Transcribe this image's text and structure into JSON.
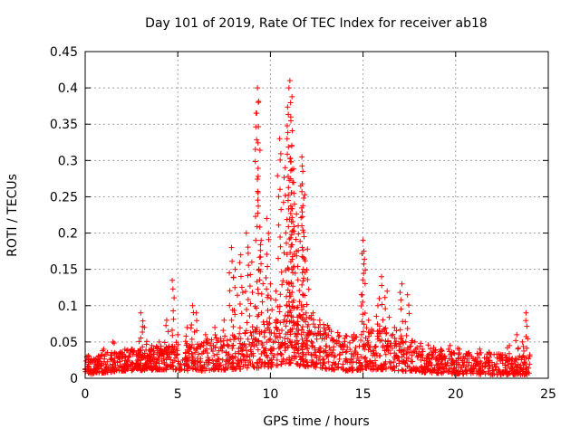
{
  "chart_data": {
    "type": "scatter",
    "title": "Day 101 of 2019, Rate Of TEC Index for receiver ab18",
    "xlabel": "GPS time / hours",
    "ylabel": "ROTI / TECUs",
    "xlim": [
      0,
      25
    ],
    "ylim": [
      0,
      0.45
    ],
    "xticks": [
      0,
      5,
      10,
      15,
      20,
      25
    ],
    "yticks": [
      0,
      0.05,
      0.1,
      0.15,
      0.2,
      0.25,
      0.3,
      0.35,
      0.4,
      0.45
    ],
    "xtick_labels": [
      "0",
      "5",
      "10",
      "15",
      "20",
      "25"
    ],
    "ytick_labels": [
      "0",
      "0.05",
      "0.1",
      "0.15",
      "0.2",
      "0.25",
      "0.3",
      "0.35",
      "0.4",
      "0.45"
    ],
    "grid": true,
    "marker": "+",
    "color": "#ff0000",
    "series": [
      {
        "name": "ROTI",
        "points": [
          [
            0.2,
            0.03
          ],
          [
            0.5,
            0.025
          ],
          [
            1.0,
            0.04
          ],
          [
            1.5,
            0.05
          ],
          [
            2.0,
            0.035
          ],
          [
            2.5,
            0.04
          ],
          [
            3.0,
            0.09
          ],
          [
            3.2,
            0.07
          ],
          [
            3.6,
            0.045
          ],
          [
            4.0,
            0.05
          ],
          [
            4.4,
            0.08
          ],
          [
            4.7,
            0.135
          ],
          [
            5.0,
            0.06
          ],
          [
            5.5,
            0.07
          ],
          [
            5.8,
            0.1
          ],
          [
            6.0,
            0.09
          ],
          [
            6.5,
            0.06
          ],
          [
            7.0,
            0.07
          ],
          [
            7.5,
            0.08
          ],
          [
            7.9,
            0.18
          ],
          [
            8.1,
            0.15
          ],
          [
            8.4,
            0.17
          ],
          [
            8.7,
            0.2
          ],
          [
            9.0,
            0.16
          ],
          [
            9.3,
            0.4
          ],
          [
            9.35,
            0.38
          ],
          [
            9.5,
            0.19
          ],
          [
            9.8,
            0.22
          ],
          [
            10.0,
            0.13
          ],
          [
            10.3,
            0.12
          ],
          [
            10.5,
            0.33
          ],
          [
            10.8,
            0.29
          ],
          [
            11.0,
            0.4
          ],
          [
            11.05,
            0.41
          ],
          [
            11.1,
            0.36
          ],
          [
            11.15,
            0.32
          ],
          [
            11.2,
            0.27
          ],
          [
            11.3,
            0.24
          ],
          [
            11.5,
            0.21
          ],
          [
            11.7,
            0.305
          ],
          [
            11.75,
            0.285
          ],
          [
            11.8,
            0.248
          ],
          [
            12.0,
            0.178
          ],
          [
            12.3,
            0.09
          ],
          [
            12.6,
            0.07
          ],
          [
            13.0,
            0.06
          ],
          [
            13.5,
            0.05
          ],
          [
            14.0,
            0.055
          ],
          [
            14.5,
            0.06
          ],
          [
            15.0,
            0.19
          ],
          [
            15.05,
            0.175
          ],
          [
            15.3,
            0.08
          ],
          [
            15.8,
            0.1
          ],
          [
            16.0,
            0.14
          ],
          [
            16.3,
            0.12
          ],
          [
            16.7,
            0.07
          ],
          [
            17.1,
            0.13
          ],
          [
            17.4,
            0.115
          ],
          [
            17.8,
            0.05
          ],
          [
            18.2,
            0.04
          ],
          [
            18.7,
            0.035
          ],
          [
            19.2,
            0.04
          ],
          [
            19.7,
            0.045
          ],
          [
            20.2,
            0.04
          ],
          [
            20.7,
            0.035
          ],
          [
            21.3,
            0.04
          ],
          [
            21.8,
            0.035
          ],
          [
            22.4,
            0.03
          ],
          [
            22.9,
            0.045
          ],
          [
            23.3,
            0.06
          ],
          [
            23.6,
            0.05
          ],
          [
            23.8,
            0.09
          ],
          [
            24.0,
            0.03
          ]
        ],
        "background_band": {
          "x": [
            0,
            2,
            4,
            6,
            8,
            10,
            11,
            12,
            14,
            16,
            18,
            20,
            22,
            24
          ],
          "low": [
            0.005,
            0.01,
            0.012,
            0.01,
            0.012,
            0.015,
            0.02,
            0.015,
            0.01,
            0.012,
            0.008,
            0.006,
            0.005,
            0.005
          ],
          "high": [
            0.03,
            0.04,
            0.045,
            0.05,
            0.06,
            0.08,
            0.11,
            0.09,
            0.06,
            0.07,
            0.05,
            0.035,
            0.035,
            0.03
          ]
        }
      }
    ]
  }
}
